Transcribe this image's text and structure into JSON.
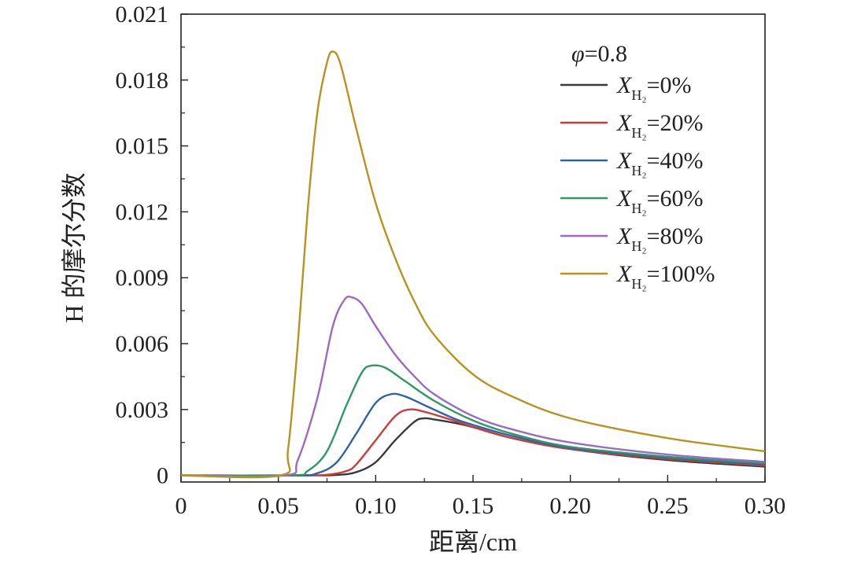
{
  "chart_data": {
    "type": "line",
    "title": "",
    "xlabel": "距离/cm",
    "ylabel": "H 的摩尔分数",
    "xlim": [
      0,
      0.3
    ],
    "ylim": [
      -0.0003,
      0.021
    ],
    "xticks": [
      0,
      0.05,
      0.1,
      0.15,
      0.2,
      0.25,
      0.3
    ],
    "xtick_labels": [
      "0",
      "0.05",
      "0.10",
      "0.15",
      "0.20",
      "0.25",
      "0.30"
    ],
    "yticks": [
      0,
      0.003,
      0.006,
      0.009,
      0.012,
      0.015,
      0.018,
      0.021
    ],
    "ytick_labels": [
      "0",
      "0.003",
      "0.006",
      "0.009",
      "0.012",
      "0.015",
      "0.018",
      "0.021"
    ],
    "grid": false,
    "legend_position": "top-right",
    "legend_header": {
      "symbol": "φ",
      "text": "=0.8"
    },
    "series": [
      {
        "label_sym": "X",
        "label_sub": "H₂",
        "label_rest": "=0%",
        "color": "#3a3a3a",
        "x": [
          0,
          0.06,
          0.08,
          0.09,
          0.1,
          0.11,
          0.12,
          0.125,
          0.13,
          0.14,
          0.15,
          0.17,
          0.2,
          0.25,
          0.3
        ],
        "y": [
          0,
          0,
          2e-05,
          0.00015,
          0.0006,
          0.0016,
          0.00245,
          0.0026,
          0.00255,
          0.0024,
          0.0022,
          0.0017,
          0.0012,
          0.0007,
          0.0004
        ]
      },
      {
        "label_sym": "X",
        "label_sub": "H₂",
        "label_rest": "=20%",
        "color": "#d03a3a",
        "x": [
          0,
          0.06,
          0.075,
          0.085,
          0.09,
          0.1,
          0.11,
          0.117,
          0.125,
          0.14,
          0.15,
          0.17,
          0.2,
          0.25,
          0.3
        ],
        "y": [
          0,
          0,
          3e-05,
          0.0002,
          0.0005,
          0.0016,
          0.0027,
          0.003,
          0.0029,
          0.0025,
          0.0022,
          0.0017,
          0.0012,
          0.00075,
          0.00045
        ]
      },
      {
        "label_sym": "X",
        "label_sub": "H₂",
        "label_rest": "=40%",
        "color": "#3462a8",
        "x": [
          0,
          0.058,
          0.07,
          0.08,
          0.09,
          0.1,
          0.108,
          0.115,
          0.125,
          0.14,
          0.15,
          0.17,
          0.2,
          0.25,
          0.3
        ],
        "y": [
          0,
          0,
          0.0001,
          0.0006,
          0.0019,
          0.0033,
          0.0037,
          0.0036,
          0.0032,
          0.0026,
          0.0023,
          0.0018,
          0.00125,
          0.0008,
          0.0005
        ]
      },
      {
        "label_sym": "X",
        "label_sub": "H₂",
        "label_rest": "=60%",
        "color": "#2e9a62",
        "x": [
          0,
          0.056,
          0.065,
          0.075,
          0.085,
          0.093,
          0.098,
          0.105,
          0.115,
          0.13,
          0.15,
          0.17,
          0.2,
          0.25,
          0.3
        ],
        "y": [
          0,
          0,
          0.0002,
          0.0011,
          0.0032,
          0.0047,
          0.005,
          0.0049,
          0.0043,
          0.0034,
          0.0025,
          0.0019,
          0.0013,
          0.00085,
          0.00055
        ]
      },
      {
        "label_sym": "X",
        "label_sub": "H₂",
        "label_rest": "=80%",
        "color": "#9a6ac6",
        "x": [
          0,
          0.053,
          0.06,
          0.07,
          0.078,
          0.084,
          0.088,
          0.093,
          0.1,
          0.11,
          0.12,
          0.13,
          0.15,
          0.17,
          0.2,
          0.25,
          0.3
        ],
        "y": [
          0,
          0,
          0.0007,
          0.0035,
          0.0068,
          0.008,
          0.0081,
          0.0078,
          0.0068,
          0.0055,
          0.0045,
          0.0037,
          0.0027,
          0.0021,
          0.0015,
          0.00095,
          0.00062
        ]
      },
      {
        "label_sym": "X",
        "label_sub": "H₂",
        "label_rest": "=100%",
        "color": "#b89320",
        "x": [
          0,
          0.051,
          0.055,
          0.06,
          0.065,
          0.07,
          0.075,
          0.078,
          0.082,
          0.09,
          0.1,
          0.11,
          0.12,
          0.13,
          0.15,
          0.17,
          0.2,
          0.25,
          0.3
        ],
        "y": [
          0,
          0,
          0.0012,
          0.006,
          0.012,
          0.0165,
          0.0188,
          0.0193,
          0.0187,
          0.0158,
          0.0124,
          0.0099,
          0.0079,
          0.0064,
          0.0046,
          0.0036,
          0.0026,
          0.0017,
          0.0011
        ]
      }
    ]
  }
}
